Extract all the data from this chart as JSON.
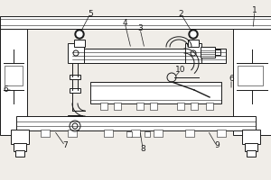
{
  "bg_color": "#f0ede8",
  "line_color": "#1a1a1a",
  "label_color": "#1a1a1a",
  "figsize": [
    3.0,
    2.0
  ],
  "dpi": 100,
  "lw": 0.7,
  "tlw": 0.4,
  "thk": 1.2
}
